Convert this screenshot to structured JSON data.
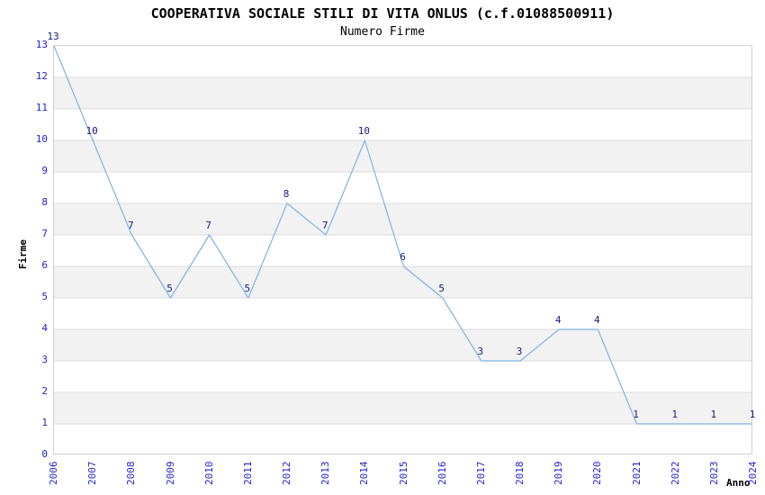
{
  "chart_data": {
    "type": "line",
    "title": "COOPERATIVA SOCIALE STILI DI VITA ONLUS (c.f.01088500911)",
    "subtitle": "Numero Firme",
    "xlabel": "Anno",
    "ylabel": "Firme",
    "categories": [
      "2006",
      "2007",
      "2008",
      "2009",
      "2010",
      "2011",
      "2012",
      "2013",
      "2014",
      "2015",
      "2016",
      "2017",
      "2018",
      "2019",
      "2020",
      "2021",
      "2022",
      "2023",
      "2024"
    ],
    "values": [
      13,
      10,
      7,
      5,
      7,
      5,
      8,
      7,
      10,
      6,
      5,
      3,
      3,
      4,
      4,
      1,
      1,
      1,
      1
    ],
    "ylim": [
      0,
      13
    ],
    "y_tick_step": 1,
    "data_labels_shown": true,
    "legend": "none",
    "grid": "horizontal-lines-with-alternating-bands",
    "colors": {
      "line": "#7fb2e5",
      "data_label": "#1a1a80",
      "tick_label": "#2323cc",
      "band": "#f2f2f2",
      "gridline": "#dcdcdc",
      "plot_border": "#d0d0d0",
      "text": "#000000"
    }
  }
}
